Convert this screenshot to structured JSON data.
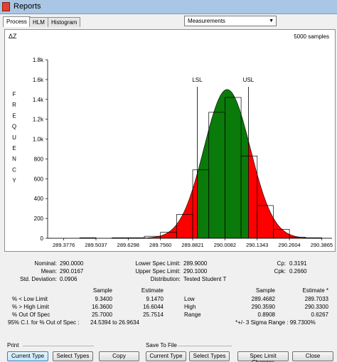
{
  "window": {
    "title": "Reports"
  },
  "tabs": [
    {
      "label": "Process",
      "active": true
    },
    {
      "label": "HLM",
      "active": false
    },
    {
      "label": "Histogram",
      "active": false
    }
  ],
  "measurement_select": {
    "value": "Measurements"
  },
  "plot": {
    "delta_z": "ΔZ",
    "samples": "5000 samples",
    "ylabel_letters": [
      "F",
      "R",
      "E",
      "Q",
      "U",
      "E",
      "N",
      "C",
      "Y"
    ],
    "lsl_label": "LSL",
    "usl_label": "USL",
    "fill_colors": {
      "in_spec": "#0a7a0a",
      "out_spec": "#ff0000",
      "bars": "#ffffff"
    }
  },
  "chart_data": {
    "type": "bar",
    "title": "",
    "xlabel": "",
    "ylabel": "FREQUENCY",
    "ylim": [
      0,
      1800
    ],
    "xlim": [
      289.3146,
      290.4271
    ],
    "y_ticks": [
      "0",
      "200",
      "400",
      "600",
      "800",
      "1.0k",
      "1.2k",
      "1.4k",
      "1.6k",
      "1.8k"
    ],
    "x_ticks": [
      "289.3776",
      "289.5037",
      "289.6298",
      "289.7560",
      "289.8821",
      "290.0082",
      "290.1343",
      "290.2604",
      "290.3865"
    ],
    "bins": [
      {
        "x0": 289.3776,
        "x1": 289.4407,
        "count": 0
      },
      {
        "x0": 289.4407,
        "x1": 289.5037,
        "count": 5
      },
      {
        "x0": 289.5037,
        "x1": 289.5668,
        "count": 0
      },
      {
        "x0": 289.5668,
        "x1": 289.6298,
        "count": 5
      },
      {
        "x0": 289.6298,
        "x1": 289.6929,
        "count": 5
      },
      {
        "x0": 289.6929,
        "x1": 289.756,
        "count": 20
      },
      {
        "x0": 289.756,
        "x1": 289.819,
        "count": 60
      },
      {
        "x0": 289.819,
        "x1": 289.8821,
        "count": 240
      },
      {
        "x0": 289.8821,
        "x1": 289.9451,
        "count": 690
      },
      {
        "x0": 289.9451,
        "x1": 290.0082,
        "count": 1270
      },
      {
        "x0": 290.0082,
        "x1": 290.0713,
        "count": 1420
      },
      {
        "x0": 290.0713,
        "x1": 290.1343,
        "count": 830
      },
      {
        "x0": 290.1343,
        "x1": 290.1974,
        "count": 330
      },
      {
        "x0": 290.1974,
        "x1": 290.2604,
        "count": 90
      },
      {
        "x0": 290.2604,
        "x1": 290.3235,
        "count": 10
      },
      {
        "x0": 290.3235,
        "x1": 290.3865,
        "count": 5
      }
    ],
    "curve": {
      "mean": 290.0167,
      "std": 0.0906,
      "peak": 1500
    },
    "spec_limits": {
      "lsl": 289.9,
      "usl": 290.1
    }
  },
  "stats": {
    "nominal_label": "Nominal:",
    "nominal": "290.0000",
    "mean_label": "Mean:",
    "mean": "290.0167",
    "std_label": "Std. Deviation:",
    "std": "0.0906",
    "lsl_label": "Lower Spec Limit:",
    "lsl": "289.9000",
    "usl_label": "Upper Spec Limit:",
    "usl": "290.1000",
    "dist_label": "Distribution:",
    "dist": "Tested Student T",
    "cp_label": "Cp:",
    "cp": "0.3191",
    "cpk_label": "Cpk:",
    "cpk": "0.2660",
    "sample_header": "Sample",
    "estimate_header": "Estimate",
    "estimate_header_star": "Estimate *",
    "below_label": "% < Low Limit",
    "below_sample": "9.3400",
    "below_estimate": "9.1470",
    "above_label": "% > High Limit",
    "above_sample": "16.3600",
    "above_estimate": "16.6044",
    "out_label": "% Out Of Spec",
    "out_sample": "25.7000",
    "out_estimate": "25.7514",
    "ci_label": "95% C.I. for % Out of Spec :",
    "ci_value": "24.5394 to 26.9634",
    "low_label": "Low",
    "low_sample": "289.4682",
    "low_estimate": "289.7033",
    "high_label": "High",
    "high_sample": "290.3590",
    "high_estimate": "290.3300",
    "range_label": "Range",
    "range_sample": "0.8908",
    "range_estimate": "0.6267",
    "sigma_note": "*+/- 3 Sigma Range : 99.7300%"
  },
  "print_group": {
    "label": "Print",
    "current_type": "Current Type",
    "select_types": "Select Types"
  },
  "copy_button": "Copy",
  "save_group": {
    "label": "Save To File",
    "current_type": "Current Type",
    "select_types": "Select Types"
  },
  "spec_limit_changes_button": "Spec Limit Changes",
  "close_button": "Close"
}
